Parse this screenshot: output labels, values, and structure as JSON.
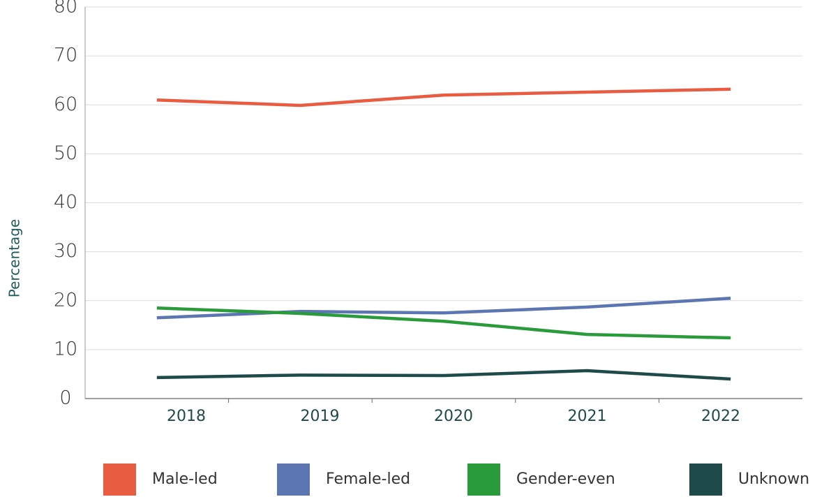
{
  "chart_data": {
    "type": "line",
    "ylabel": "Percentage",
    "categories": [
      "2018",
      "2019",
      "2020",
      "2021",
      "2022"
    ],
    "series": [
      {
        "name": "Male-led",
        "color": "#e85c41",
        "values": [
          61.0,
          59.9,
          62.0,
          62.6,
          63.2
        ]
      },
      {
        "name": "Female-led",
        "color": "#5b76b0",
        "values": [
          16.5,
          17.8,
          17.5,
          18.7,
          20.5
        ]
      },
      {
        "name": "Gender-even",
        "color": "#2a9b3a",
        "values": [
          18.5,
          17.4,
          15.8,
          13.1,
          12.4
        ]
      },
      {
        "name": "Unknown",
        "color": "#1e4a4a",
        "values": [
          4.3,
          4.8,
          4.7,
          5.7,
          4.0
        ]
      }
    ],
    "ylim": [
      0,
      80
    ],
    "yticks": [
      0,
      10,
      20,
      30,
      40,
      50,
      60,
      70,
      80
    ],
    "grid": true
  }
}
